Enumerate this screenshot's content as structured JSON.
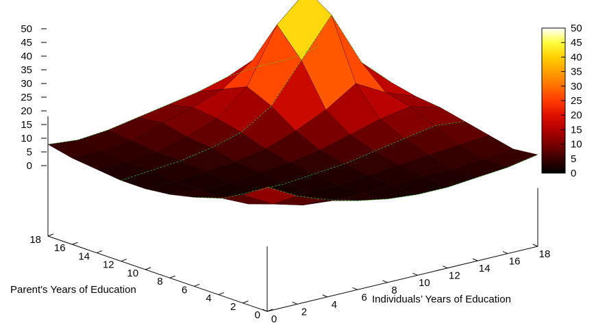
{
  "chart_data": {
    "type": "surface3d",
    "title": "",
    "xlabel": "Individuals’ Years of Education",
    "ylabel": "Parent's Years of Education",
    "zlabel": "",
    "x": [
      0,
      2,
      4,
      6,
      8,
      10,
      12,
      14,
      16,
      18
    ],
    "y": [
      0,
      2,
      4,
      6,
      8,
      10,
      12,
      14,
      16,
      18
    ],
    "x_ticks": [
      "0",
      "2",
      "4",
      "6",
      "8",
      "10",
      "12",
      "14",
      "16",
      "18"
    ],
    "y_ticks": [
      "0",
      "2",
      "4",
      "6",
      "8",
      "10",
      "12",
      "14",
      "16",
      "18"
    ],
    "z_ticks": [
      "0",
      "5",
      "10",
      "15",
      "20",
      "25",
      "30",
      "35",
      "40",
      "45",
      "50"
    ],
    "zlim": [
      0,
      50
    ],
    "colorbar": {
      "ticks": [
        "0",
        "5",
        "10",
        "15",
        "20",
        "25",
        "30",
        "35",
        "40",
        "45",
        "50"
      ],
      "range": [
        0,
        50
      ],
      "colors": [
        "#000000",
        "#3a0000",
        "#7a0000",
        "#b00000",
        "#e01000",
        "#ff3a00",
        "#ff7000",
        "#ffa000",
        "#ffd000",
        "#ffff40",
        "#ffffff"
      ]
    },
    "surface_values": [
      [
        18,
        12,
        8,
        5,
        3,
        2,
        2,
        3,
        4,
        6
      ],
      [
        12,
        6,
        3,
        2,
        2,
        2,
        3,
        3,
        4,
        5
      ],
      [
        8,
        3,
        2,
        2,
        2,
        3,
        4,
        5,
        6,
        7
      ],
      [
        5,
        2,
        2,
        2,
        3,
        4,
        6,
        8,
        10,
        9
      ],
      [
        3,
        2,
        2,
        3,
        4,
        6,
        9,
        12,
        14,
        11
      ],
      [
        2,
        2,
        3,
        4,
        6,
        10,
        15,
        22,
        16,
        12
      ],
      [
        2,
        3,
        4,
        6,
        9,
        16,
        30,
        44,
        24,
        14
      ],
      [
        3,
        3,
        4,
        7,
        11,
        20,
        40,
        50,
        28,
        16
      ],
      [
        4,
        4,
        5,
        9,
        12,
        16,
        24,
        28,
        22,
        16
      ],
      [
        6,
        5,
        6,
        8,
        10,
        12,
        15,
        16,
        16,
        18
      ]
    ],
    "contour_lines": true,
    "grid": false
  }
}
